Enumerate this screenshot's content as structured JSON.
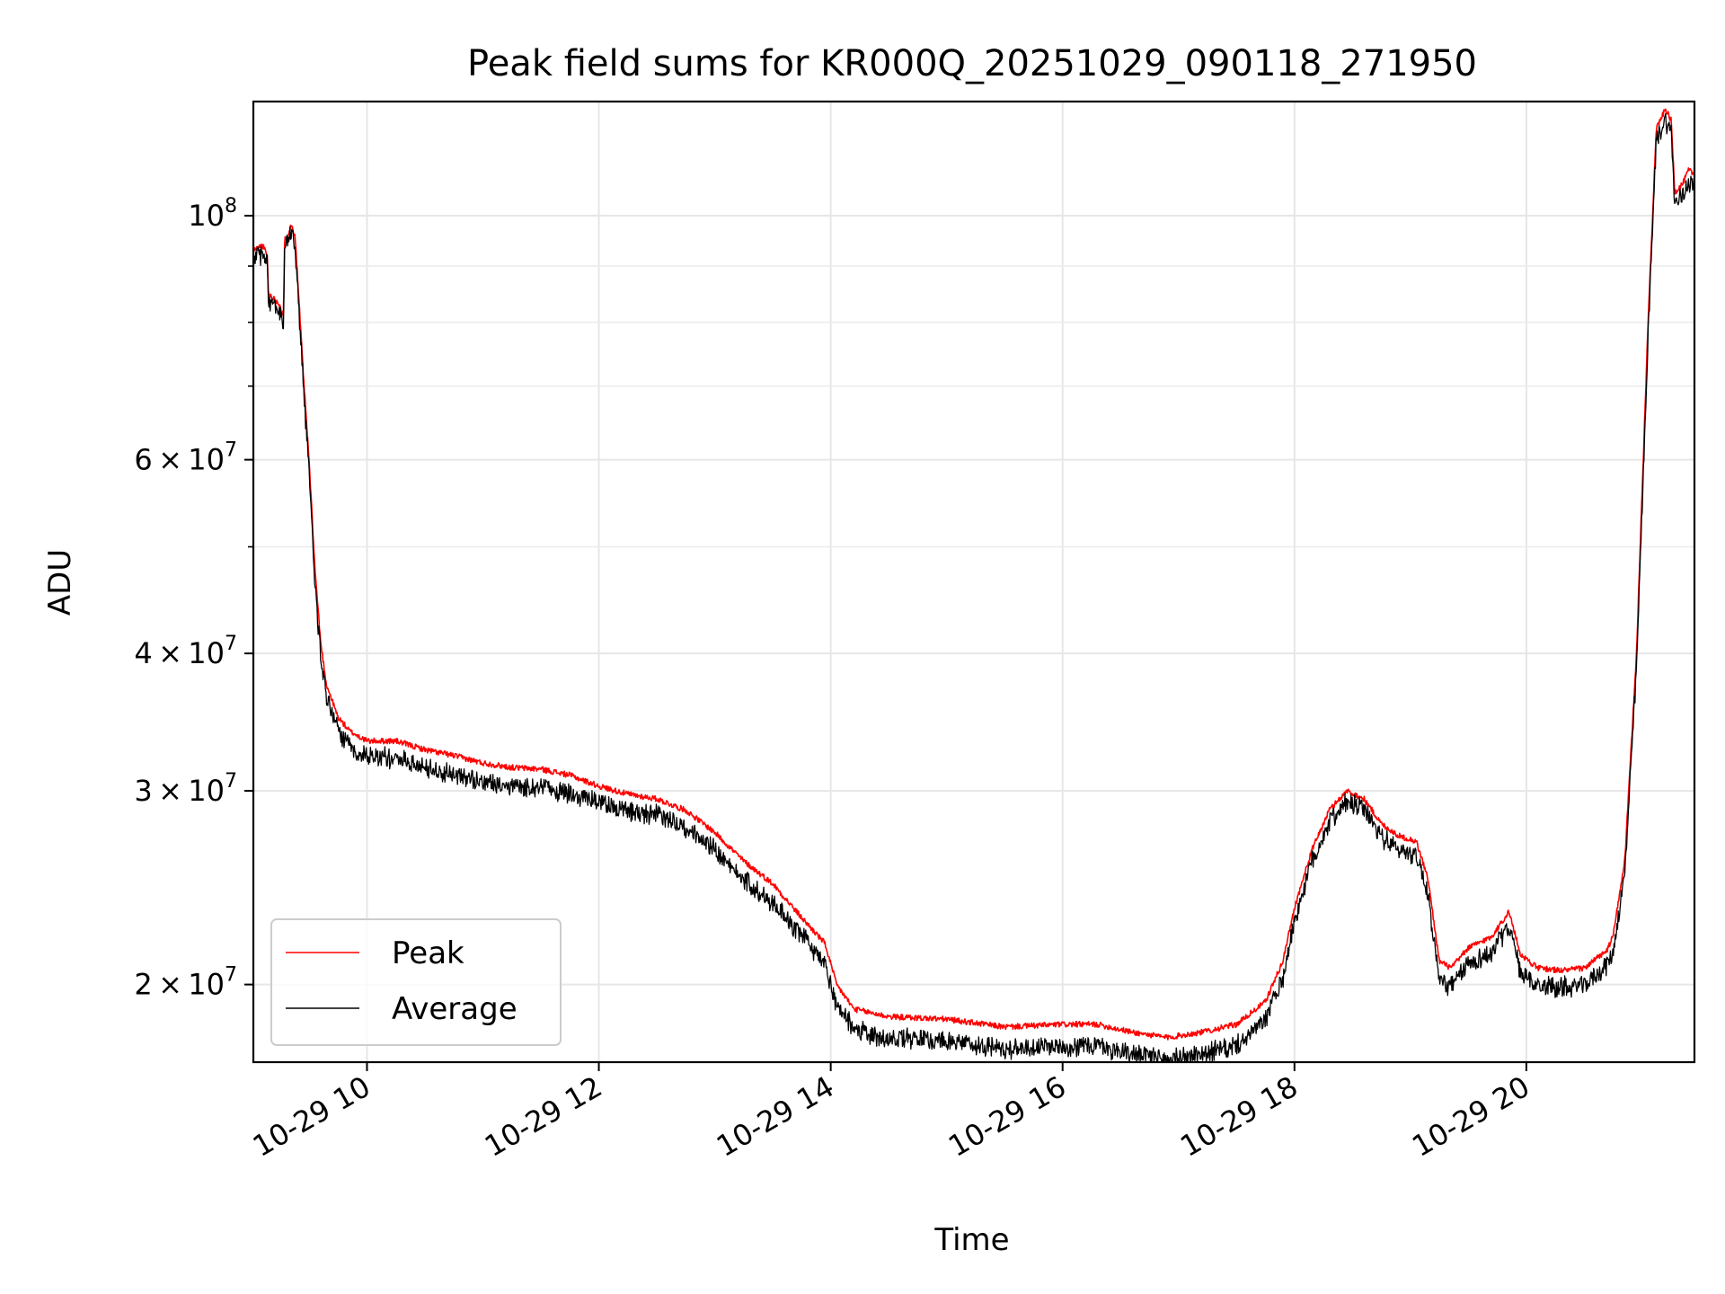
{
  "chart_data": {
    "type": "line",
    "title": "Peak field sums for KR000Q_20251029_090118_271950",
    "xlabel": "Time",
    "ylabel": "ADU",
    "yscale": "log",
    "xlim": [
      9.02,
      21.45
    ],
    "ylim": [
      17000000,
      127000000
    ],
    "grid": true,
    "legend_loc": "lower left",
    "x_ticks": [
      {
        "value": 10,
        "label": "10-29 10"
      },
      {
        "value": 12,
        "label": "10-29 12"
      },
      {
        "value": 14,
        "label": "10-29 14"
      },
      {
        "value": 16,
        "label": "10-29 16"
      },
      {
        "value": 18,
        "label": "10-29 18"
      },
      {
        "value": 20,
        "label": "10-29 20"
      }
    ],
    "y_ticks": [
      {
        "value": 20000000,
        "base": "2",
        "times": "×",
        "pow10": "10",
        "exp": "7"
      },
      {
        "value": 30000000,
        "base": "3",
        "times": "×",
        "pow10": "10",
        "exp": "7"
      },
      {
        "value": 40000000,
        "base": "4",
        "times": "×",
        "pow10": "10",
        "exp": "7"
      },
      {
        "value": 60000000,
        "base": "6",
        "times": "×",
        "pow10": "10",
        "exp": "7"
      },
      {
        "value": 100000000,
        "base": "",
        "times": "",
        "pow10": "10",
        "exp": "8"
      }
    ],
    "y_minor_ticks": [
      50000000,
      70000000,
      80000000,
      90000000
    ],
    "series": [
      {
        "name": "Peak",
        "color": "#ff0000",
        "points": [
          [
            9.02,
            93000000
          ],
          [
            9.1,
            94000000
          ],
          [
            9.14,
            92000000
          ],
          [
            9.15,
            85000000
          ],
          [
            9.25,
            83000000
          ],
          [
            9.28,
            81000000
          ],
          [
            9.29,
            95000000
          ],
          [
            9.35,
            98000000
          ],
          [
            9.38,
            96000000
          ],
          [
            9.45,
            72000000
          ],
          [
            9.5,
            60000000
          ],
          [
            9.55,
            48000000
          ],
          [
            9.6,
            41000000
          ],
          [
            9.65,
            37500000
          ],
          [
            9.75,
            35000000
          ],
          [
            9.85,
            34000000
          ],
          [
            10.0,
            33300000
          ],
          [
            10.25,
            33300000
          ],
          [
            10.5,
            32700000
          ],
          [
            10.75,
            32300000
          ],
          [
            11.0,
            31800000
          ],
          [
            11.25,
            31500000
          ],
          [
            11.5,
            31400000
          ],
          [
            11.75,
            31000000
          ],
          [
            12.0,
            30300000
          ],
          [
            12.25,
            29800000
          ],
          [
            12.5,
            29500000
          ],
          [
            12.75,
            28800000
          ],
          [
            13.0,
            27500000
          ],
          [
            13.25,
            25900000
          ],
          [
            13.5,
            24700000
          ],
          [
            13.75,
            23000000
          ],
          [
            13.95,
            21800000
          ],
          [
            14.05,
            20000000
          ],
          [
            14.2,
            19000000
          ],
          [
            14.5,
            18700000
          ],
          [
            15.0,
            18600000
          ],
          [
            15.5,
            18300000
          ],
          [
            16.0,
            18400000
          ],
          [
            16.3,
            18400000
          ],
          [
            16.6,
            18100000
          ],
          [
            16.9,
            17900000
          ],
          [
            17.2,
            18100000
          ],
          [
            17.5,
            18400000
          ],
          [
            17.75,
            19300000
          ],
          [
            17.9,
            21000000
          ],
          [
            18.0,
            23500000
          ],
          [
            18.15,
            26500000
          ],
          [
            18.3,
            28800000
          ],
          [
            18.45,
            30000000
          ],
          [
            18.6,
            29500000
          ],
          [
            18.75,
            28000000
          ],
          [
            18.9,
            27300000
          ],
          [
            19.05,
            27000000
          ],
          [
            19.15,
            25000000
          ],
          [
            19.25,
            21000000
          ],
          [
            19.35,
            20700000
          ],
          [
            19.5,
            21600000
          ],
          [
            19.7,
            22100000
          ],
          [
            19.85,
            23300000
          ],
          [
            19.95,
            21300000
          ],
          [
            20.1,
            20700000
          ],
          [
            20.3,
            20600000
          ],
          [
            20.5,
            20700000
          ],
          [
            20.7,
            21500000
          ],
          [
            20.75,
            22200000
          ],
          [
            20.85,
            26000000
          ],
          [
            20.95,
            40000000
          ],
          [
            21.05,
            80000000
          ],
          [
            21.12,
            120000000
          ],
          [
            21.2,
            125000000
          ],
          [
            21.25,
            122000000
          ],
          [
            21.28,
            105000000
          ],
          [
            21.35,
            107000000
          ],
          [
            21.4,
            110000000
          ],
          [
            21.45,
            109000000
          ]
        ]
      },
      {
        "name": "Average",
        "color": "#000000",
        "points": [
          [
            9.02,
            92000000
          ],
          [
            9.1,
            93000000
          ],
          [
            9.14,
            91000000
          ],
          [
            9.15,
            84000000
          ],
          [
            9.25,
            82000000
          ],
          [
            9.28,
            80000000
          ],
          [
            9.29,
            94000000
          ],
          [
            9.35,
            97000000
          ],
          [
            9.38,
            95000000
          ],
          [
            9.45,
            71000000
          ],
          [
            9.5,
            59000000
          ],
          [
            9.55,
            47000000
          ],
          [
            9.6,
            40000000
          ],
          [
            9.65,
            36700000
          ],
          [
            9.75,
            34200000
          ],
          [
            9.85,
            33000000
          ],
          [
            10.0,
            32500000
          ],
          [
            10.25,
            32300000
          ],
          [
            10.5,
            31700000
          ],
          [
            10.75,
            31200000
          ],
          [
            11.0,
            30800000
          ],
          [
            11.25,
            30500000
          ],
          [
            11.5,
            30400000
          ],
          [
            11.75,
            30000000
          ],
          [
            12.0,
            29500000
          ],
          [
            12.25,
            28900000
          ],
          [
            12.5,
            28700000
          ],
          [
            12.75,
            28000000
          ],
          [
            13.0,
            26700000
          ],
          [
            13.25,
            25100000
          ],
          [
            13.5,
            23900000
          ],
          [
            13.75,
            22300000
          ],
          [
            13.95,
            21000000
          ],
          [
            14.05,
            19300000
          ],
          [
            14.2,
            18300000
          ],
          [
            14.5,
            18000000
          ],
          [
            15.0,
            17900000
          ],
          [
            15.5,
            17600000
          ],
          [
            16.0,
            17700000
          ],
          [
            16.3,
            17700000
          ],
          [
            16.6,
            17400000
          ],
          [
            16.9,
            17200000
          ],
          [
            17.2,
            17400000
          ],
          [
            17.5,
            17700000
          ],
          [
            17.75,
            18700000
          ],
          [
            17.9,
            20400000
          ],
          [
            18.0,
            23000000
          ],
          [
            18.15,
            26000000
          ],
          [
            18.3,
            28300000
          ],
          [
            18.45,
            29500000
          ],
          [
            18.6,
            29000000
          ],
          [
            18.75,
            27400000
          ],
          [
            18.9,
            26700000
          ],
          [
            19.05,
            26400000
          ],
          [
            19.15,
            24400000
          ],
          [
            19.25,
            20300000
          ],
          [
            19.35,
            20000000
          ],
          [
            19.5,
            21000000
          ],
          [
            19.7,
            21500000
          ],
          [
            19.85,
            22800000
          ],
          [
            19.95,
            20600000
          ],
          [
            20.1,
            20100000
          ],
          [
            20.3,
            20000000
          ],
          [
            20.5,
            20100000
          ],
          [
            20.7,
            21000000
          ],
          [
            20.75,
            21600000
          ],
          [
            20.85,
            25400000
          ],
          [
            20.95,
            39000000
          ],
          [
            21.05,
            78000000
          ],
          [
            21.12,
            118000000
          ],
          [
            21.2,
            123000000
          ],
          [
            21.25,
            120000000
          ],
          [
            21.28,
            103000000
          ],
          [
            21.35,
            105000000
          ],
          [
            21.4,
            108000000
          ],
          [
            21.45,
            107000000
          ]
        ]
      }
    ]
  }
}
